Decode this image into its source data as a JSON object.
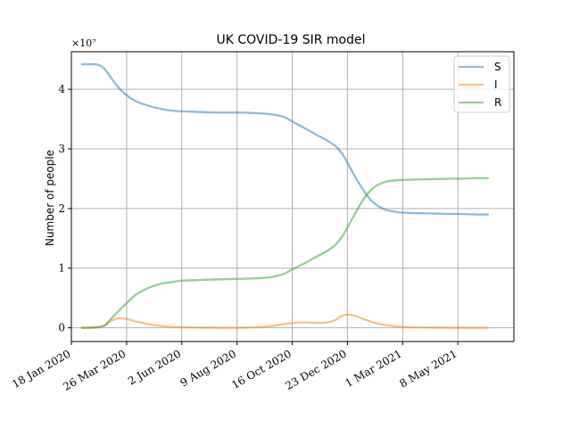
{
  "chart_data": {
    "type": "line",
    "title": "UK COVID-19 SIR model",
    "ylabel": "Number of people",
    "y_multiplier": "×10⁷",
    "y_scale_factor": 10000000,
    "xlim": [
      "2020-01-18",
      "2021-07-16"
    ],
    "ylim": [
      -2300000,
      46300000
    ],
    "x_ticks": [
      {
        "date": "2020-01-18",
        "label": "18 Jan 2020"
      },
      {
        "date": "2020-03-26",
        "label": "26 Mar 2020"
      },
      {
        "date": "2020-06-02",
        "label": "2 Jun 2020"
      },
      {
        "date": "2020-08-09",
        "label": "9 Aug 2020"
      },
      {
        "date": "2020-10-16",
        "label": "16 Oct 2020"
      },
      {
        "date": "2020-12-23",
        "label": "23 Dec 2020"
      },
      {
        "date": "2021-03-01",
        "label": "1 Mar 2021"
      },
      {
        "date": "2021-05-08",
        "label": "8 May 2021"
      }
    ],
    "y_ticks": [
      {
        "value": 0,
        "label": "0"
      },
      {
        "value": 10000000,
        "label": "1"
      },
      {
        "value": 20000000,
        "label": "2"
      },
      {
        "value": 30000000,
        "label": "3"
      },
      {
        "value": 40000000,
        "label": "4"
      }
    ],
    "grid": true,
    "legend_position": "top-right",
    "series": [
      {
        "name": "S",
        "color": "#1f77b4",
        "points": [
          [
            "2020-01-31",
            44200000
          ],
          [
            "2020-02-10",
            44200000
          ],
          [
            "2020-02-20",
            44100000
          ],
          [
            "2020-02-28",
            43400000
          ],
          [
            "2020-03-06",
            42100000
          ],
          [
            "2020-03-16",
            40300000
          ],
          [
            "2020-03-26",
            39000000
          ],
          [
            "2020-04-05",
            38100000
          ],
          [
            "2020-04-16",
            37500000
          ],
          [
            "2020-04-28",
            37000000
          ],
          [
            "2020-05-08",
            36700000
          ],
          [
            "2020-05-22",
            36400000
          ],
          [
            "2020-06-02",
            36300000
          ],
          [
            "2020-06-23",
            36200000
          ],
          [
            "2020-07-14",
            36100000
          ],
          [
            "2020-08-09",
            36100000
          ],
          [
            "2020-09-02",
            36000000
          ],
          [
            "2020-09-20",
            35800000
          ],
          [
            "2020-10-05",
            35400000
          ],
          [
            "2020-10-16",
            34600000
          ],
          [
            "2020-10-31",
            33500000
          ],
          [
            "2020-11-16",
            32300000
          ],
          [
            "2020-11-28",
            31400000
          ],
          [
            "2020-12-08",
            30500000
          ],
          [
            "2020-12-16",
            29300000
          ],
          [
            "2020-12-23",
            27700000
          ],
          [
            "2021-01-02",
            25200000
          ],
          [
            "2021-01-13",
            22800000
          ],
          [
            "2021-01-24",
            21000000
          ],
          [
            "2021-02-06",
            19900000
          ],
          [
            "2021-02-18",
            19500000
          ],
          [
            "2021-03-01",
            19300000
          ],
          [
            "2021-03-28",
            19200000
          ],
          [
            "2021-04-28",
            19100000
          ],
          [
            "2021-05-08",
            19100000
          ],
          [
            "2021-06-01",
            19000000
          ],
          [
            "2021-06-14",
            19000000
          ]
        ]
      },
      {
        "name": "I",
        "color": "#ff7f0e",
        "points": [
          [
            "2020-01-31",
            0
          ],
          [
            "2020-02-18",
            100000
          ],
          [
            "2020-02-28",
            400000
          ],
          [
            "2020-03-06",
            1100000
          ],
          [
            "2020-03-16",
            1600000
          ],
          [
            "2020-03-26",
            1500000
          ],
          [
            "2020-04-05",
            1100000
          ],
          [
            "2020-04-16",
            800000
          ],
          [
            "2020-05-01",
            400000
          ],
          [
            "2020-05-22",
            150000
          ],
          [
            "2020-06-23",
            50000
          ],
          [
            "2020-08-09",
            0
          ],
          [
            "2020-09-02",
            100000
          ],
          [
            "2020-09-20",
            300000
          ],
          [
            "2020-10-05",
            600000
          ],
          [
            "2020-10-16",
            800000
          ],
          [
            "2020-10-31",
            900000
          ],
          [
            "2020-11-16",
            800000
          ],
          [
            "2020-11-28",
            900000
          ],
          [
            "2020-12-08",
            1300000
          ],
          [
            "2020-12-16",
            2000000
          ],
          [
            "2020-12-23",
            2200000
          ],
          [
            "2021-01-02",
            2000000
          ],
          [
            "2021-01-13",
            1400000
          ],
          [
            "2021-01-24",
            900000
          ],
          [
            "2021-02-06",
            500000
          ],
          [
            "2021-02-18",
            300000
          ],
          [
            "2021-03-01",
            150000
          ],
          [
            "2021-03-28",
            50000
          ],
          [
            "2021-05-08",
            0
          ],
          [
            "2021-06-14",
            0
          ]
        ]
      },
      {
        "name": "R",
        "color": "#2ca02c",
        "points": [
          [
            "2020-01-31",
            0
          ],
          [
            "2020-02-18",
            50000
          ],
          [
            "2020-02-28",
            400000
          ],
          [
            "2020-03-06",
            1400000
          ],
          [
            "2020-03-16",
            2800000
          ],
          [
            "2020-03-26",
            4100000
          ],
          [
            "2020-04-05",
            5400000
          ],
          [
            "2020-04-16",
            6300000
          ],
          [
            "2020-04-28",
            7000000
          ],
          [
            "2020-05-08",
            7400000
          ],
          [
            "2020-05-22",
            7700000
          ],
          [
            "2020-06-02",
            7900000
          ],
          [
            "2020-06-23",
            8000000
          ],
          [
            "2020-07-14",
            8100000
          ],
          [
            "2020-08-09",
            8200000
          ],
          [
            "2020-09-02",
            8300000
          ],
          [
            "2020-09-20",
            8500000
          ],
          [
            "2020-10-05",
            9000000
          ],
          [
            "2020-10-16",
            9800000
          ],
          [
            "2020-10-31",
            10800000
          ],
          [
            "2020-11-16",
            12000000
          ],
          [
            "2020-11-28",
            12900000
          ],
          [
            "2020-12-08",
            13900000
          ],
          [
            "2020-12-16",
            15200000
          ],
          [
            "2020-12-23",
            16800000
          ],
          [
            "2021-01-02",
            19300000
          ],
          [
            "2021-01-13",
            21800000
          ],
          [
            "2021-01-24",
            23500000
          ],
          [
            "2021-02-06",
            24400000
          ],
          [
            "2021-02-18",
            24700000
          ],
          [
            "2021-03-01",
            24800000
          ],
          [
            "2021-03-28",
            24900000
          ],
          [
            "2021-04-28",
            25000000
          ],
          [
            "2021-05-08",
            25000000
          ],
          [
            "2021-06-01",
            25100000
          ],
          [
            "2021-06-14",
            25100000
          ]
        ]
      }
    ]
  }
}
